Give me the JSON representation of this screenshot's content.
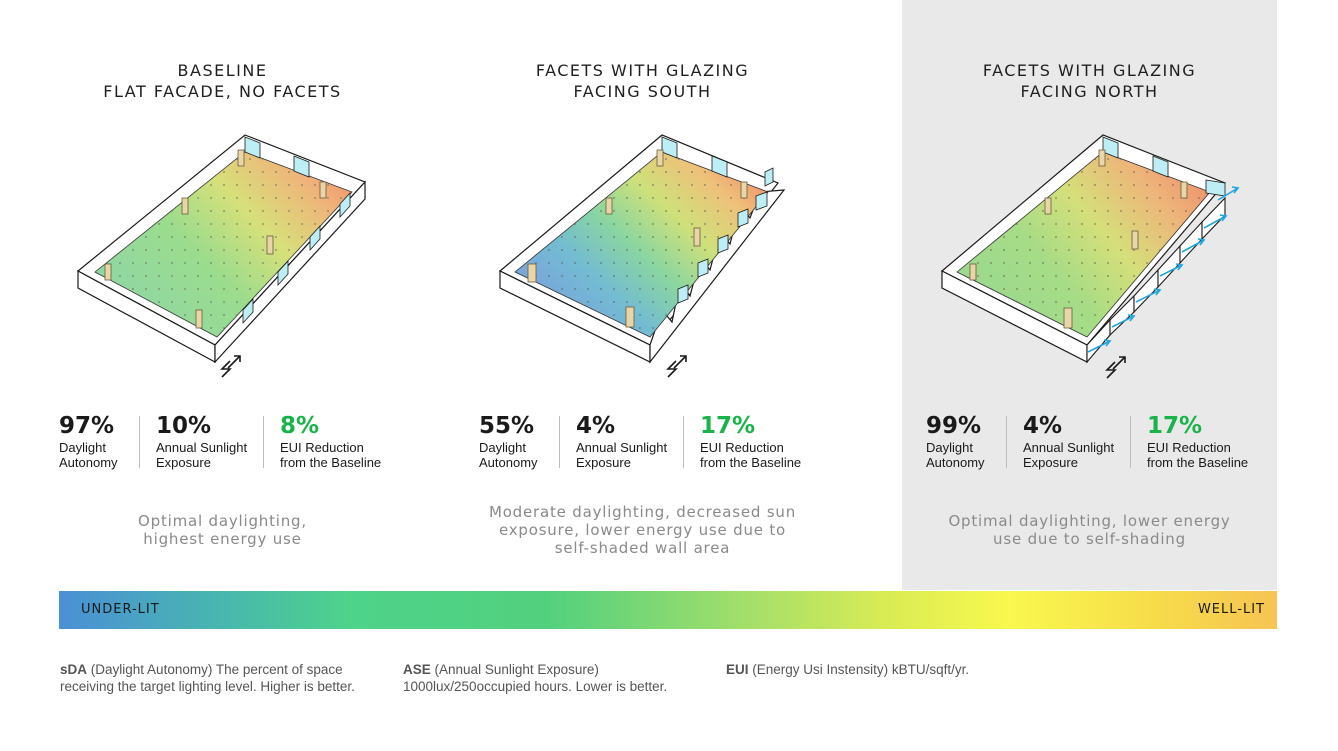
{
  "scenarios": [
    {
      "title_line1": "BASELINE",
      "title_line2": "FLAT FACADE, NO FACETS",
      "metrics": [
        {
          "value": "97%",
          "label1": "Daylight",
          "label2": "Autonomy"
        },
        {
          "value": "10%",
          "label1": "Annual Sunlight",
          "label2": "Exposure"
        },
        {
          "value": "8%",
          "label1": "EUI Reduction",
          "label2": "from the Baseline"
        }
      ],
      "desc_line1": "Optimal daylighting,",
      "desc_line2": "highest energy use",
      "desc_line3": ""
    },
    {
      "title_line1": "FACETS WITH GLAZING",
      "title_line2": "FACING SOUTH",
      "metrics": [
        {
          "value": "55%",
          "label1": "Daylight",
          "label2": "Autonomy"
        },
        {
          "value": "4%",
          "label1": "Annual Sunlight",
          "label2": "Exposure"
        },
        {
          "value": "17%",
          "label1": "EUI Reduction",
          "label2": "from the Baseline"
        }
      ],
      "desc_line1": "Moderate daylighting, decreased sun",
      "desc_line2": "exposure, lower energy use due to",
      "desc_line3": "self-shaded wall area"
    },
    {
      "title_line1": "FACETS WITH GLAZING",
      "title_line2": "FACING NORTH",
      "metrics": [
        {
          "value": "99%",
          "label1": "Daylight",
          "label2": "Autonomy"
        },
        {
          "value": "4%",
          "label1": "Annual Sunlight",
          "label2": "Exposure"
        },
        {
          "value": "17%",
          "label1": "EUI Reduction",
          "label2": "from the Baseline"
        }
      ],
      "desc_line1": "Optimal daylighting, lower energy",
      "desc_line2": "use due to self-shading",
      "desc_line3": ""
    }
  ],
  "scale": {
    "left_label": "UNDER-LIT",
    "right_label": "WELL-LIT",
    "colors": [
      "#4b8fd6",
      "#4ed38a",
      "#f8f84e",
      "#f6c453"
    ]
  },
  "legend": [
    {
      "abbr": "sDA",
      "line1": "(Daylight Autonomy) The percent of space",
      "line2": "receiving the target lighting level. Higher is better."
    },
    {
      "abbr": "ASE",
      "line1": "(Annual Sunlight Exposure)",
      "line2": "1000lux/250occupied hours. Lower is better."
    },
    {
      "abbr": "EUI",
      "line1": "(Energy Usi Instensity) kBTU/sqft/yr.",
      "line2": ""
    }
  ],
  "north_arrow_label": "N",
  "accent_green": "#19b34a"
}
